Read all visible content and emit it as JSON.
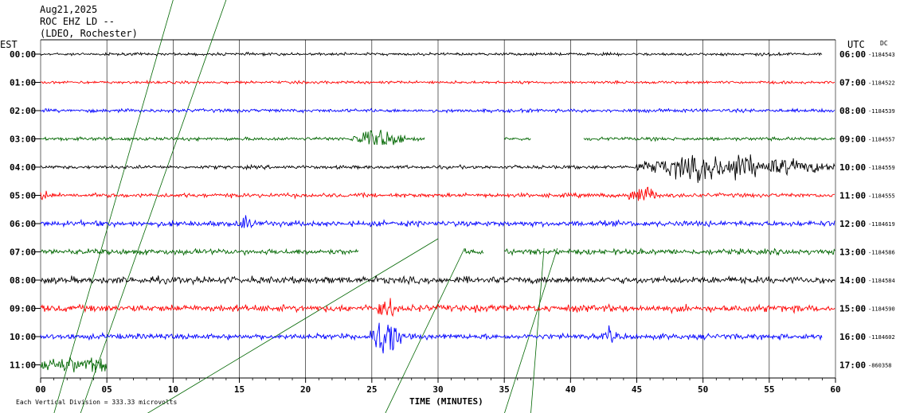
{
  "header": {
    "date": "Aug21,2025",
    "station": "ROC EHZ LD --",
    "location": "(LDEO, Rochester)",
    "left_zone": "EST",
    "right_zone": "UTC",
    "dc_label": "DC"
  },
  "footer": {
    "scale_note": "Each Vertical Division =  333.33 microvolts",
    "xlabel": "TIME (MINUTES)"
  },
  "chart_data": {
    "type": "line",
    "title": "ROC EHZ LD -- (LDEO, Rochester) Aug21,2025",
    "xlabel": "TIME (MINUTES)",
    "ylabel": "",
    "xlim": [
      0,
      60
    ],
    "x_ticks": [
      "00",
      "05",
      "10",
      "15",
      "20",
      "25",
      "30",
      "35",
      "40",
      "45",
      "50",
      "55",
      "60"
    ],
    "grid": true,
    "trace_colors": [
      "#000000",
      "#ff0000",
      "#0000ff",
      "#006600"
    ],
    "rows": [
      {
        "local": "00:00",
        "utc": "06:00",
        "dc_offset": "-1184543",
        "color": "#000000",
        "amp": 2,
        "segments": [
          [
            0,
            59
          ]
        ],
        "events": [
          {
            "t": 55.5,
            "amp": 3,
            "dur": 3
          }
        ]
      },
      {
        "local": "01:00",
        "utc": "07:00",
        "dc_offset": "-1184522",
        "color": "#ff0000",
        "amp": 2,
        "segments": [
          [
            0,
            60
          ]
        ],
        "events": []
      },
      {
        "local": "02:00",
        "utc": "08:00",
        "dc_offset": "-1184539",
        "color": "#0000ff",
        "amp": 2.5,
        "segments": [
          [
            0,
            60
          ]
        ],
        "events": []
      },
      {
        "local": "03:00",
        "utc": "09:00",
        "dc_offset": "-1184557",
        "color": "#006600",
        "amp": 2.5,
        "segments": [
          [
            0,
            29
          ],
          [
            35,
            37
          ],
          [
            41,
            60
          ]
        ],
        "events": [
          {
            "t": 25.5,
            "amp": 16,
            "dur": 2
          }
        ]
      },
      {
        "local": "04:00",
        "utc": "10:00",
        "dc_offset": "-1184559",
        "color": "#000000",
        "amp": 2.5,
        "segments": [
          [
            0,
            60
          ]
        ],
        "events": [
          {
            "t": 50,
            "amp": 20,
            "dur": 5
          },
          {
            "t": 52.5,
            "amp": 25,
            "dur": 2
          },
          {
            "t": 55,
            "amp": 14,
            "dur": 5
          }
        ]
      },
      {
        "local": "05:00",
        "utc": "11:00",
        "dc_offset": "-1184555",
        "color": "#ff0000",
        "amp": 3,
        "segments": [
          [
            0,
            60
          ]
        ],
        "events": [
          {
            "t": 0.2,
            "amp": 16,
            "dur": 0.4
          },
          {
            "t": 45.5,
            "amp": 16,
            "dur": 1.2
          }
        ]
      },
      {
        "local": "06:00",
        "utc": "12:00",
        "dc_offset": "-1184619",
        "color": "#0000ff",
        "amp": 4,
        "segments": [
          [
            0,
            60
          ]
        ],
        "events": [
          {
            "t": 15.5,
            "amp": 14,
            "dur": 0.6
          }
        ]
      },
      {
        "local": "07:00",
        "utc": "13:00",
        "dc_offset": "-1184586",
        "color": "#006600",
        "amp": 4,
        "segments": [
          [
            0,
            24
          ],
          [
            32,
            33.5
          ],
          [
            35,
            60
          ]
        ],
        "events": []
      },
      {
        "local": "08:00",
        "utc": "14:00",
        "dc_offset": "-1184584",
        "color": "#000000",
        "amp": 5,
        "segments": [
          [
            0,
            60
          ]
        ],
        "events": []
      },
      {
        "local": "09:00",
        "utc": "15:00",
        "dc_offset": "-1184590",
        "color": "#ff0000",
        "amp": 5,
        "segments": [
          [
            0,
            60
          ]
        ],
        "events": [
          {
            "t": 26,
            "amp": 20,
            "dur": 0.8
          }
        ]
      },
      {
        "local": "10:00",
        "utc": "16:00",
        "dc_offset": "-1184602",
        "color": "#0000ff",
        "amp": 4,
        "segments": [
          [
            0,
            59
          ]
        ],
        "events": [
          {
            "t": 26,
            "amp": 34,
            "dur": 1.2
          },
          {
            "t": 43,
            "amp": 14,
            "dur": 0.6
          }
        ]
      },
      {
        "local": "11:00",
        "utc": "17:00",
        "dc_offset": "-860358",
        "color": "#006600",
        "amp": 12,
        "segments": [
          [
            0,
            5
          ]
        ],
        "events": []
      }
    ]
  }
}
